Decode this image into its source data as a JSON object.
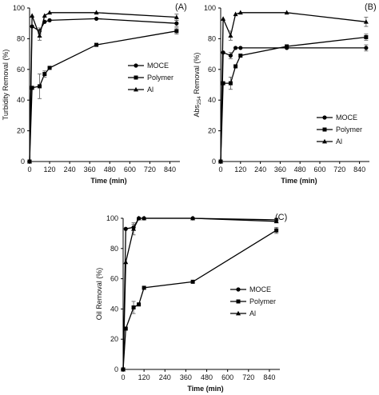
{
  "chart_data": [
    {
      "type": "line",
      "panel_label": "(A)",
      "ylabel": "Turbidity Removal (%)",
      "xlabel": "Time (min)",
      "xlim": [
        0,
        900
      ],
      "ylim": [
        0,
        100
      ],
      "xticks": [
        0,
        120,
        240,
        360,
        480,
        600,
        720,
        840
      ],
      "yticks": [
        0,
        20,
        40,
        60,
        80,
        100
      ],
      "legend_position": "right-middle",
      "series": [
        {
          "name": "MOCE",
          "marker": "circle",
          "x": [
            0,
            15,
            60,
            90,
            120,
            400,
            880
          ],
          "y": [
            0,
            88,
            85,
            91,
            92,
            93,
            90
          ],
          "err": [
            0,
            0,
            2,
            0,
            0,
            0,
            2
          ]
        },
        {
          "name": "Polymer",
          "marker": "square",
          "x": [
            0,
            15,
            60,
            90,
            120,
            400,
            880
          ],
          "y": [
            0,
            48,
            49,
            57,
            61,
            76,
            85
          ],
          "err": [
            0,
            0,
            8,
            2,
            0,
            0,
            2
          ]
        },
        {
          "name": "Al",
          "marker": "triangle",
          "x": [
            0,
            15,
            60,
            90,
            120,
            400,
            880
          ],
          "y": [
            0,
            95,
            82,
            95,
            97,
            97,
            94
          ],
          "err": [
            0,
            0,
            3,
            0,
            0,
            0,
            2
          ]
        }
      ]
    },
    {
      "type": "line",
      "panel_label": "(B)",
      "ylabel_main": "Abs",
      "ylabel_sub": "254",
      "ylabel_rest": " Removal (%)",
      "xlabel": "Time (min)",
      "xlim": [
        0,
        900
      ],
      "ylim": [
        0,
        100
      ],
      "xticks": [
        0,
        120,
        240,
        360,
        480,
        600,
        720,
        840
      ],
      "yticks": [
        0,
        20,
        40,
        60,
        80,
        100
      ],
      "legend_position": "right-bottom",
      "series": [
        {
          "name": "MOCE",
          "marker": "circle",
          "x": [
            0,
            15,
            60,
            90,
            120,
            400,
            880
          ],
          "y": [
            0,
            71,
            69,
            74,
            74,
            74,
            74
          ],
          "err": [
            0,
            0,
            2,
            0,
            0,
            0,
            2
          ]
        },
        {
          "name": "Polymer",
          "marker": "square",
          "x": [
            0,
            15,
            60,
            90,
            120,
            400,
            880
          ],
          "y": [
            0,
            51,
            51,
            62,
            69,
            75,
            81
          ],
          "err": [
            0,
            0,
            4,
            0,
            0,
            0,
            2
          ]
        },
        {
          "name": "Al",
          "marker": "triangle",
          "x": [
            0,
            15,
            60,
            90,
            120,
            400,
            880
          ],
          "y": [
            0,
            93,
            82,
            96,
            97,
            97,
            91
          ],
          "err": [
            0,
            0,
            3,
            0,
            0,
            0,
            3
          ]
        }
      ]
    },
    {
      "type": "line",
      "panel_label": "(C)",
      "ylabel": "Oil Removal (%)",
      "xlabel": "Time (min)",
      "xlim": [
        0,
        900
      ],
      "ylim": [
        0,
        100
      ],
      "xticks": [
        0,
        120,
        240,
        360,
        480,
        600,
        720,
        840
      ],
      "yticks": [
        0,
        20,
        40,
        60,
        80,
        100
      ],
      "legend_position": "right-middle",
      "series": [
        {
          "name": "MOCE",
          "marker": "circle",
          "x": [
            0,
            15,
            60,
            90,
            120,
            400,
            880
          ],
          "y": [
            0,
            93,
            94,
            100,
            100,
            100,
            99
          ],
          "err": [
            0,
            0,
            2,
            0,
            0,
            0,
            1
          ]
        },
        {
          "name": "Polymer",
          "marker": "square",
          "x": [
            0,
            15,
            60,
            90,
            120,
            400,
            880
          ],
          "y": [
            0,
            27,
            41,
            43,
            54,
            58,
            92
          ],
          "err": [
            0,
            0,
            4,
            0,
            0,
            0,
            2
          ]
        },
        {
          "name": "Al",
          "marker": "triangle",
          "x": [
            0,
            15,
            60,
            90,
            120,
            400,
            880
          ],
          "y": [
            0,
            71,
            93,
            100,
            100,
            100,
            98
          ],
          "err": [
            0,
            0,
            4,
            0,
            0,
            0,
            1
          ]
        }
      ]
    }
  ]
}
